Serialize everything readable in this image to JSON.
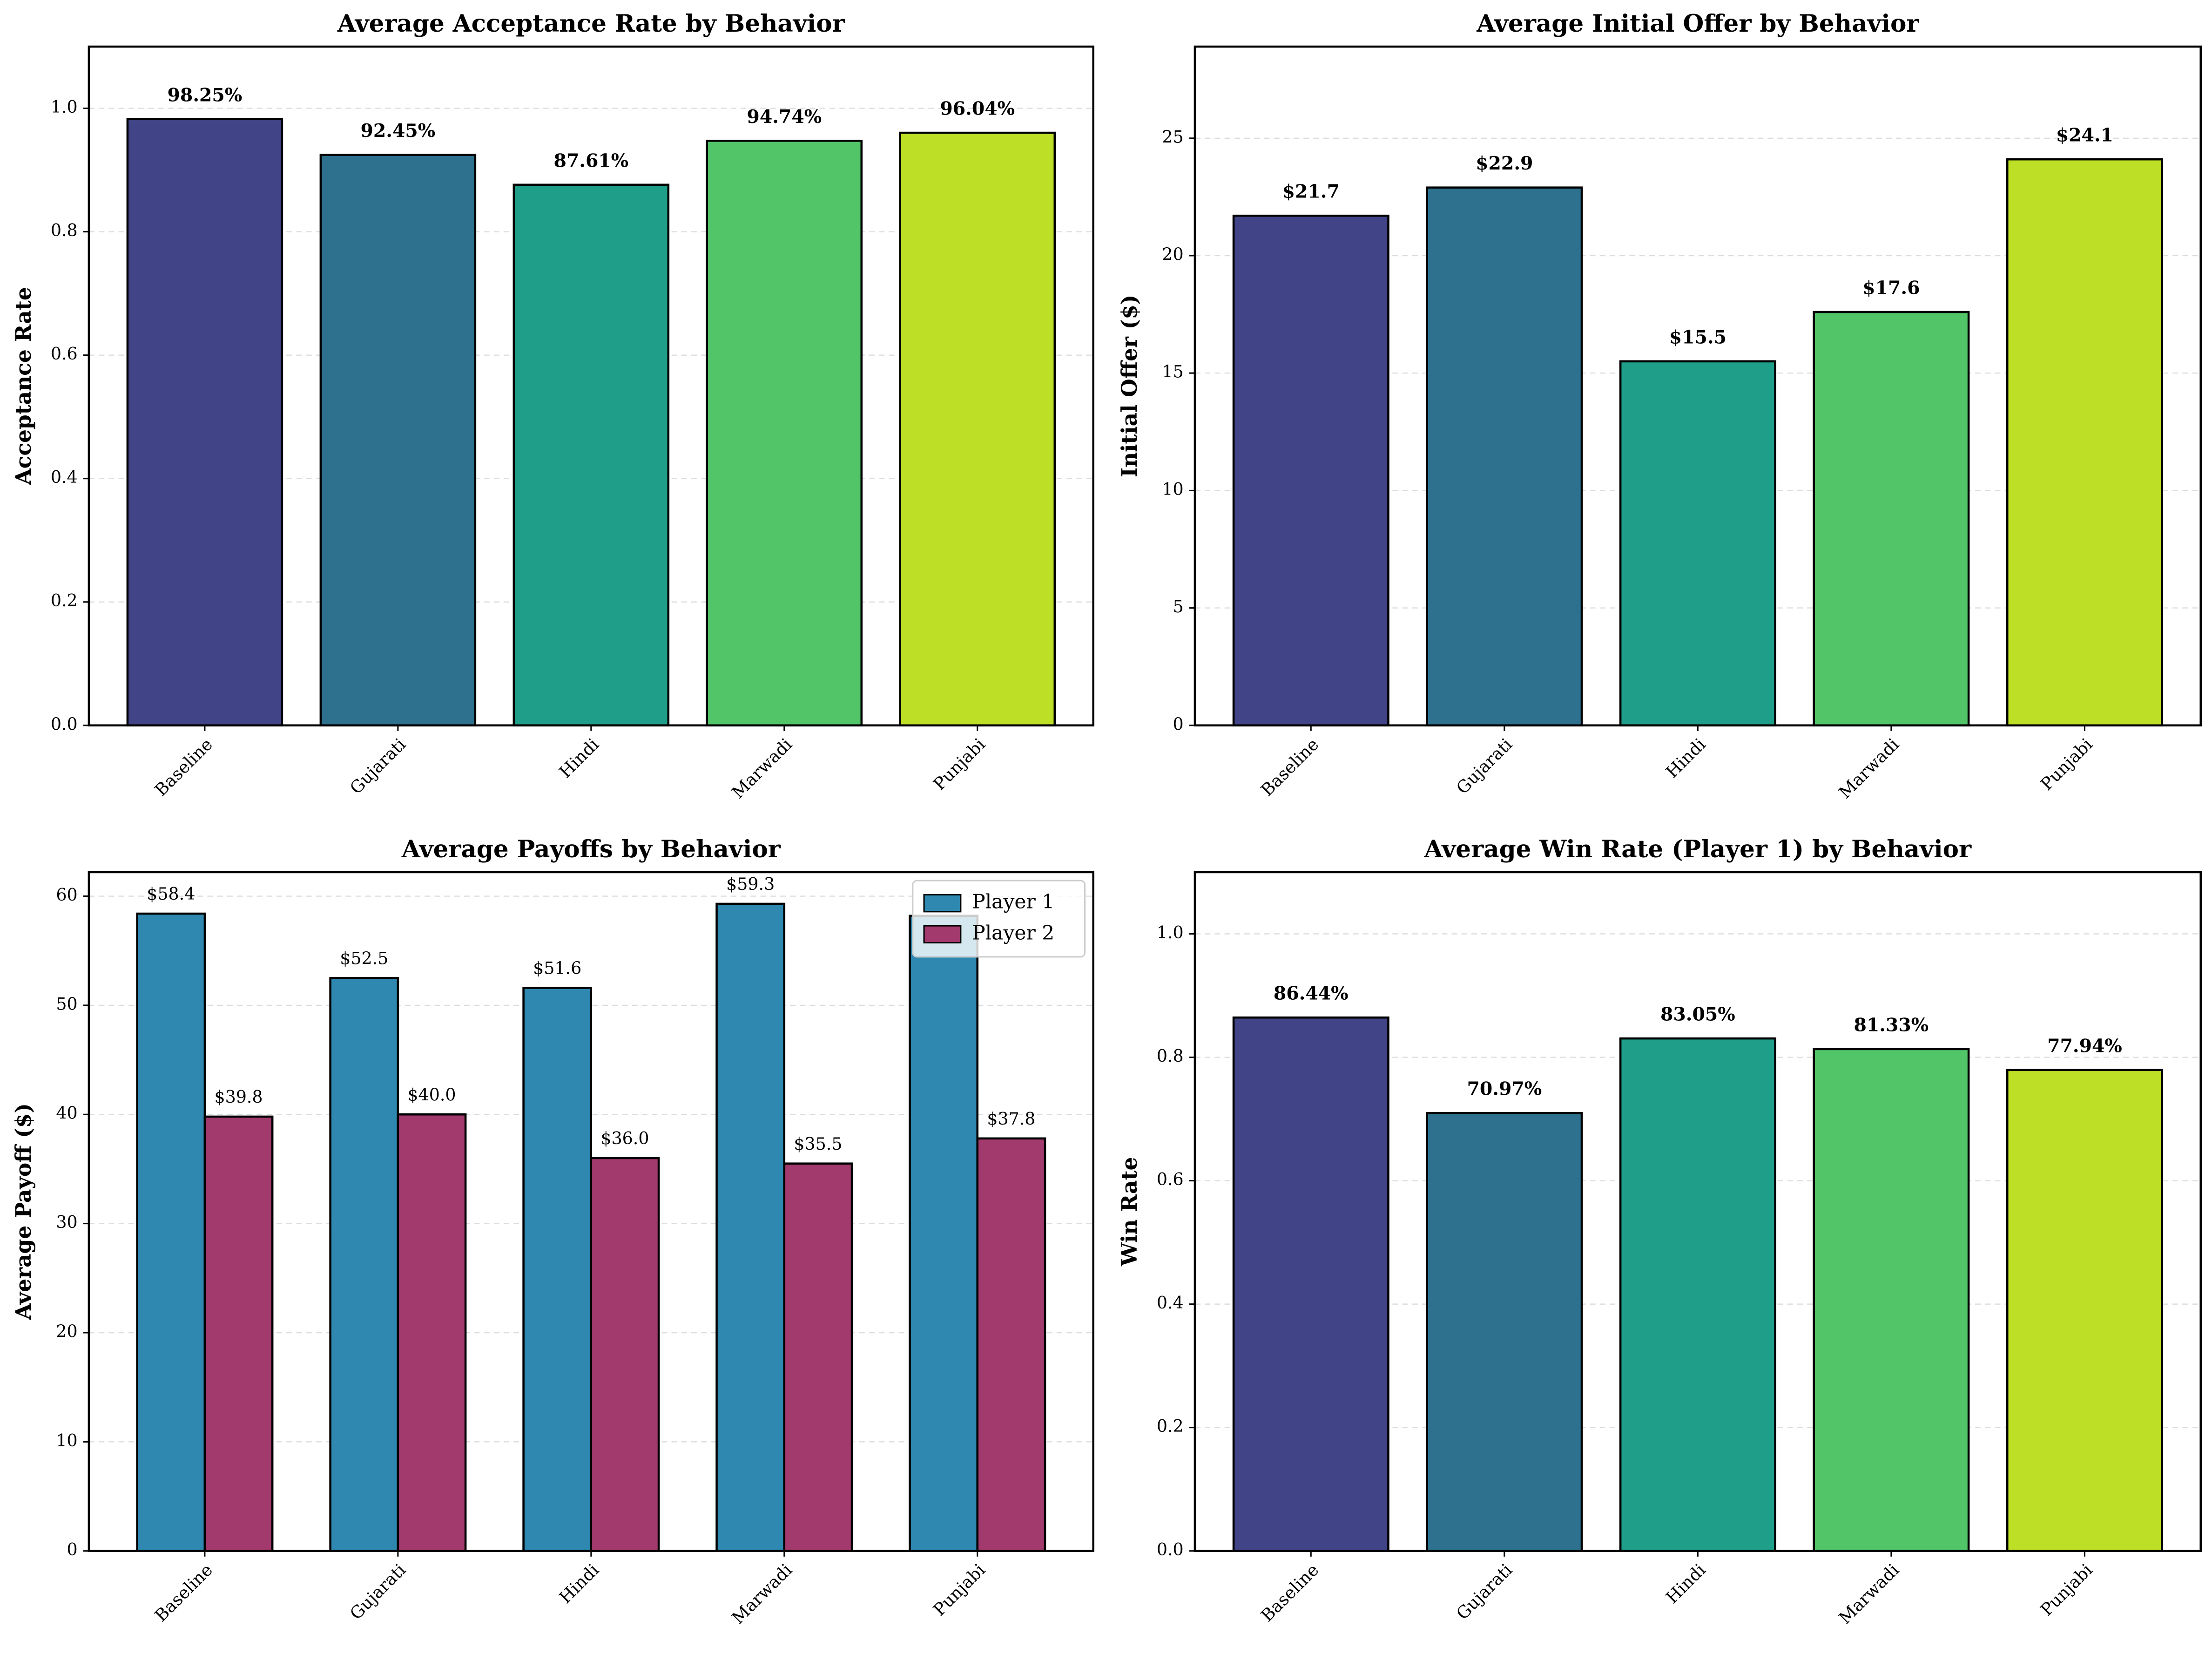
{
  "chart_data": [
    {
      "type": "bar",
      "title": "Average Acceptance Rate by Behavior",
      "ylabel": "Acceptance Rate",
      "categories": [
        "Baseline",
        "Gujarati",
        "Hindi",
        "Marwadi",
        "Punjabi"
      ],
      "values": [
        0.9825,
        0.9245,
        0.8761,
        0.9474,
        0.9604
      ],
      "value_labels": [
        "98.25%",
        "92.45%",
        "87.61%",
        "94.74%",
        "96.04%"
      ],
      "colors": [
        "#414487",
        "#2d718e",
        "#1f9e89",
        "#52c569",
        "#bddf26"
      ],
      "ylim": [
        0,
        1.1
      ],
      "yticks": [
        {
          "value": 0,
          "label": "0.0"
        },
        0.2,
        0.4,
        0.6,
        0.8,
        {
          "value": 1,
          "label": "1.0"
        }
      ],
      "grid": true
    },
    {
      "type": "bar",
      "title": "Average Initial Offer by Behavior",
      "ylabel": "Initial Offer ($)",
      "categories": [
        "Baseline",
        "Gujarati",
        "Hindi",
        "Marwadi",
        "Punjabi"
      ],
      "values": [
        21.7,
        22.9,
        15.5,
        17.6,
        24.1
      ],
      "value_labels": [
        "$21.7",
        "$22.9",
        "$15.5",
        "$17.6",
        "$24.1"
      ],
      "colors": [
        "#414487",
        "#2d718e",
        "#1f9e89",
        "#52c569",
        "#bddf26"
      ],
      "ylim": [
        0,
        28.9
      ],
      "yticks": [
        0,
        5,
        10,
        15,
        20,
        25
      ],
      "grid": true
    },
    {
      "type": "grouped_bar",
      "title": "Average Payoffs by Behavior",
      "ylabel": "Average Payoff ($)",
      "categories": [
        "Baseline",
        "Gujarati",
        "Hindi",
        "Marwadi",
        "Punjabi"
      ],
      "series": [
        {
          "name": "Player 1",
          "color": "#2e88b0",
          "values": [
            58.4,
            52.5,
            51.6,
            59.3,
            58.2
          ],
          "value_labels": [
            "$58.4",
            "$52.5",
            "$51.6",
            "$59.3",
            null
          ]
        },
        {
          "name": "Player 2",
          "color": "#a23a6e",
          "values": [
            39.8,
            40.0,
            36.0,
            35.5,
            37.8
          ],
          "value_labels": [
            "$39.8",
            "$40.0",
            "$36.0",
            "$35.5",
            "$37.8"
          ]
        }
      ],
      "ylim": [
        0,
        62.2
      ],
      "yticks": [
        0,
        10,
        20,
        30,
        40,
        50,
        60
      ],
      "grid": true,
      "legend": "upper right"
    },
    {
      "type": "bar",
      "title": "Average Win Rate (Player 1) by Behavior",
      "ylabel": "Win Rate",
      "categories": [
        "Baseline",
        "Gujarati",
        "Hindi",
        "Marwadi",
        "Punjabi"
      ],
      "values": [
        0.8644,
        0.7097,
        0.8305,
        0.8133,
        0.7794
      ],
      "value_labels": [
        "86.44%",
        "70.97%",
        "83.05%",
        "81.33%",
        "77.94%"
      ],
      "colors": [
        "#414487",
        "#2d718e",
        "#1f9e89",
        "#52c569",
        "#bddf26"
      ],
      "ylim": [
        0,
        1.1
      ],
      "yticks": [
        {
          "value": 0,
          "label": "0.0"
        },
        0.2,
        0.4,
        0.6,
        0.8,
        {
          "value": 1,
          "label": "1.0"
        }
      ],
      "grid": true
    }
  ]
}
